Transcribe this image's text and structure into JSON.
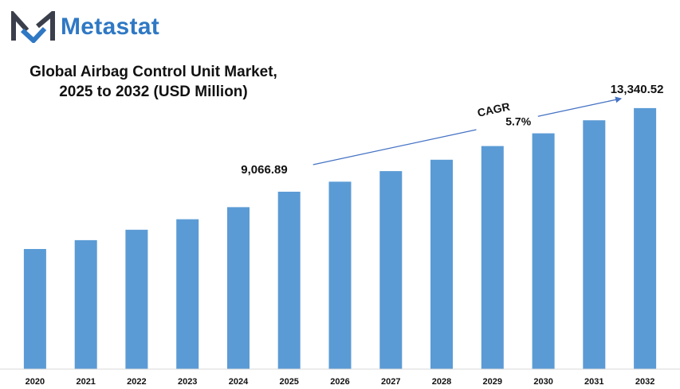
{
  "brand": {
    "name": "Metastat",
    "logo_icon": "metastat-m-logo",
    "colors": {
      "logo_dark": "#3a3f4b",
      "logo_blue": "#2f78c4"
    }
  },
  "title_lines": [
    "Global Airbag Control Unit Market,",
    "2025 to 2032 (USD Million)"
  ],
  "chart_data": {
    "type": "bar",
    "title": "Global Airbag Control Unit Market, 2025 to 2032 (USD Million)",
    "xlabel": "",
    "ylabel": "",
    "categories": [
      "2020",
      "2021",
      "2022",
      "2023",
      "2024",
      "2025",
      "2026",
      "2027",
      "2028",
      "2029",
      "2030",
      "2031",
      "2032"
    ],
    "values": [
      6140,
      6590,
      7125,
      7660,
      8280,
      9066.89,
      9580,
      10120,
      10700,
      11400,
      12050,
      12720,
      13340.52
    ],
    "data_labels": [
      {
        "category": "2025",
        "text": "9,066.89"
      },
      {
        "category": "2032",
        "text": "13,340.52"
      }
    ],
    "annotation": {
      "label": "CAGR",
      "value": "5.7%",
      "from": "2025",
      "to": "2032"
    },
    "ylim": [
      0,
      14800
    ],
    "grid": false,
    "bar_color": "#5b9bd5",
    "arrow_color": "#4472c4"
  }
}
